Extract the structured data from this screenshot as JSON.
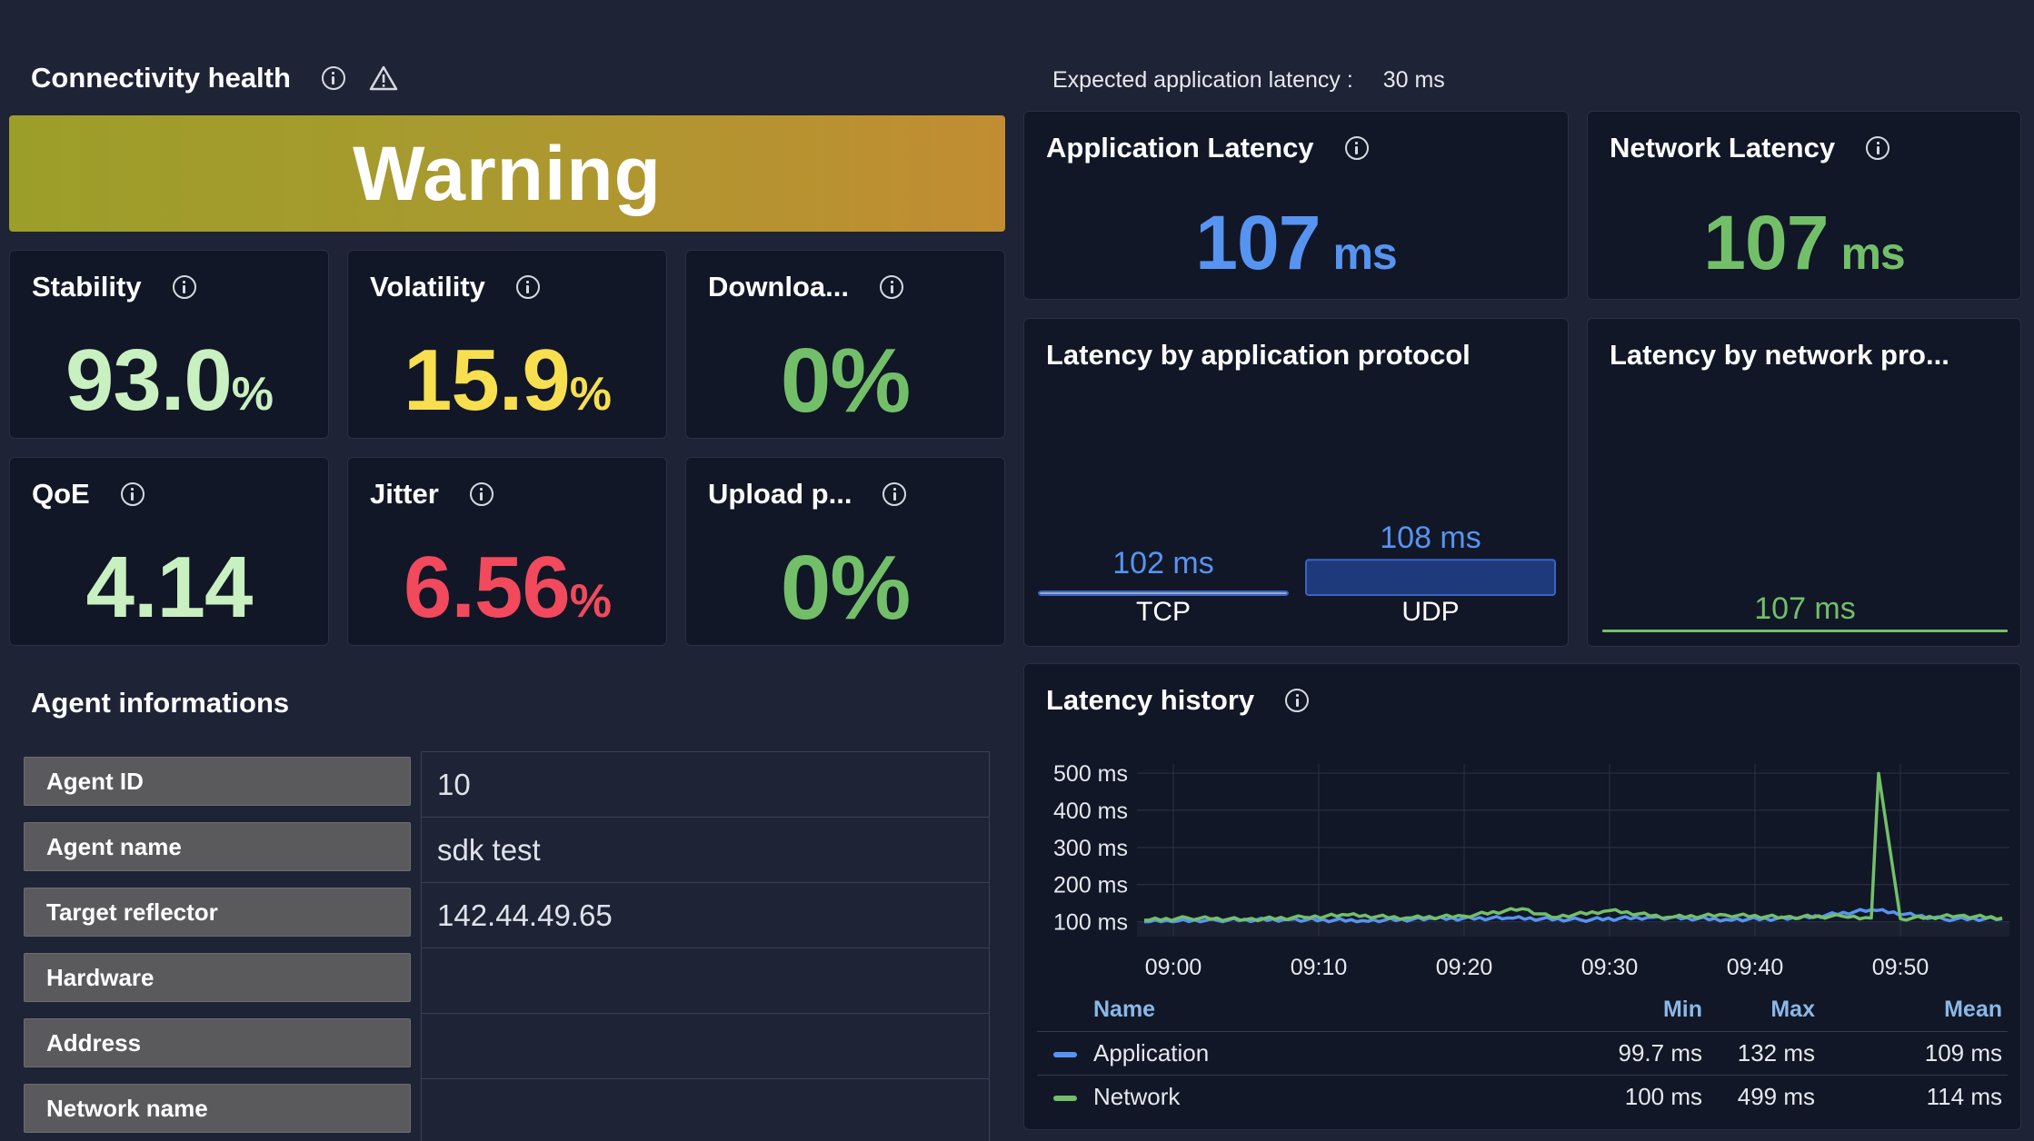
{
  "connectivity": {
    "title": "Connectivity health",
    "status": "Warning"
  },
  "expected_latency": {
    "label": "Expected application latency :",
    "value": "30 ms"
  },
  "stats": [
    {
      "title": "Stability",
      "value": "93.0",
      "unit": "%",
      "color": "#c9f0c0"
    },
    {
      "title": "Volatility",
      "value": "15.9",
      "unit": "%",
      "color": "#f7df4f"
    },
    {
      "title": "Downloa...",
      "value": "0",
      "unit": "%",
      "color": "#73bf69"
    },
    {
      "title": "QoE",
      "value": "4.14",
      "unit": "",
      "color": "#c9f0c0"
    },
    {
      "title": "Jitter",
      "value": "6.56",
      "unit": "%",
      "color": "#f2495c"
    },
    {
      "title": "Upload p...",
      "value": "0",
      "unit": "%",
      "color": "#73bf69"
    }
  ],
  "app_latency": {
    "title": "Application Latency",
    "value": "107",
    "unit": "ms",
    "color": "#5794f2"
  },
  "net_latency": {
    "title": "Network Latency",
    "value": "107",
    "unit": "ms",
    "color": "#73bf69"
  },
  "latency_by_app_protocol": {
    "title": "Latency by application protocol",
    "bars": [
      {
        "label": "TCP",
        "value_label": "102 ms",
        "value": 102
      },
      {
        "label": "UDP",
        "value_label": "108 ms",
        "value": 108
      }
    ]
  },
  "latency_by_net_protocol": {
    "title": "Latency by network pro...",
    "value_label": "107 ms"
  },
  "agent": {
    "title": "Agent informations",
    "rows": [
      {
        "key": "Agent ID",
        "value": "10"
      },
      {
        "key": "Agent name",
        "value": "sdk test"
      },
      {
        "key": "Target reflector",
        "value": "142.44.49.65"
      },
      {
        "key": "Hardware",
        "value": ""
      },
      {
        "key": "Address",
        "value": ""
      },
      {
        "key": "Network name",
        "value": ""
      }
    ]
  },
  "latency_history": {
    "title": "Latency history",
    "legend_headers": {
      "name": "Name",
      "min": "Min",
      "max": "Max",
      "mean": "Mean"
    },
    "legend": [
      {
        "name": "Application",
        "min": "99.7 ms",
        "max": "132 ms",
        "mean": "109 ms",
        "color": "#5794f2"
      },
      {
        "name": "Network",
        "min": "100 ms",
        "max": "499 ms",
        "mean": "114 ms",
        "color": "#73bf69"
      }
    ]
  },
  "chart_data": {
    "type": "line",
    "title": "Latency history",
    "xlabel": "",
    "ylabel": "",
    "x_ticks": [
      "09:00",
      "09:10",
      "09:20",
      "09:30",
      "09:40",
      "09:50"
    ],
    "y_ticks": [
      "100 ms",
      "200 ms",
      "300 ms",
      "400 ms",
      "500 ms"
    ],
    "ylim": [
      60,
      500
    ],
    "xlim": [
      "08:57:30",
      "09:57:30"
    ],
    "grid": true,
    "legend_position": "bottom",
    "series": [
      {
        "name": "Application",
        "color": "#5794f2",
        "x": [
          "08:58",
          "09:03",
          "09:08",
          "09:13",
          "09:18",
          "09:23",
          "09:28",
          "09:33",
          "09:38",
          "09:43",
          "09:48",
          "09:53",
          "09:57"
        ],
        "values": [
          100,
          104,
          106,
          103,
          108,
          110,
          105,
          112,
          106,
          109,
          132,
          107,
          108
        ]
      },
      {
        "name": "Network",
        "color": "#73bf69",
        "x": [
          "08:58",
          "09:01",
          "09:05",
          "09:09",
          "09:12",
          "09:16",
          "09:20",
          "09:24",
          "09:26",
          "09:30",
          "09:34",
          "09:38",
          "09:42",
          "09:46",
          "09:48",
          "09:48:30",
          "09:50",
          "09:54",
          "09:57"
        ],
        "values": [
          104,
          110,
          106,
          112,
          118,
          110,
          115,
          135,
          112,
          130,
          112,
          118,
          112,
          115,
          110,
          499,
          108,
          116,
          110
        ]
      }
    ]
  }
}
